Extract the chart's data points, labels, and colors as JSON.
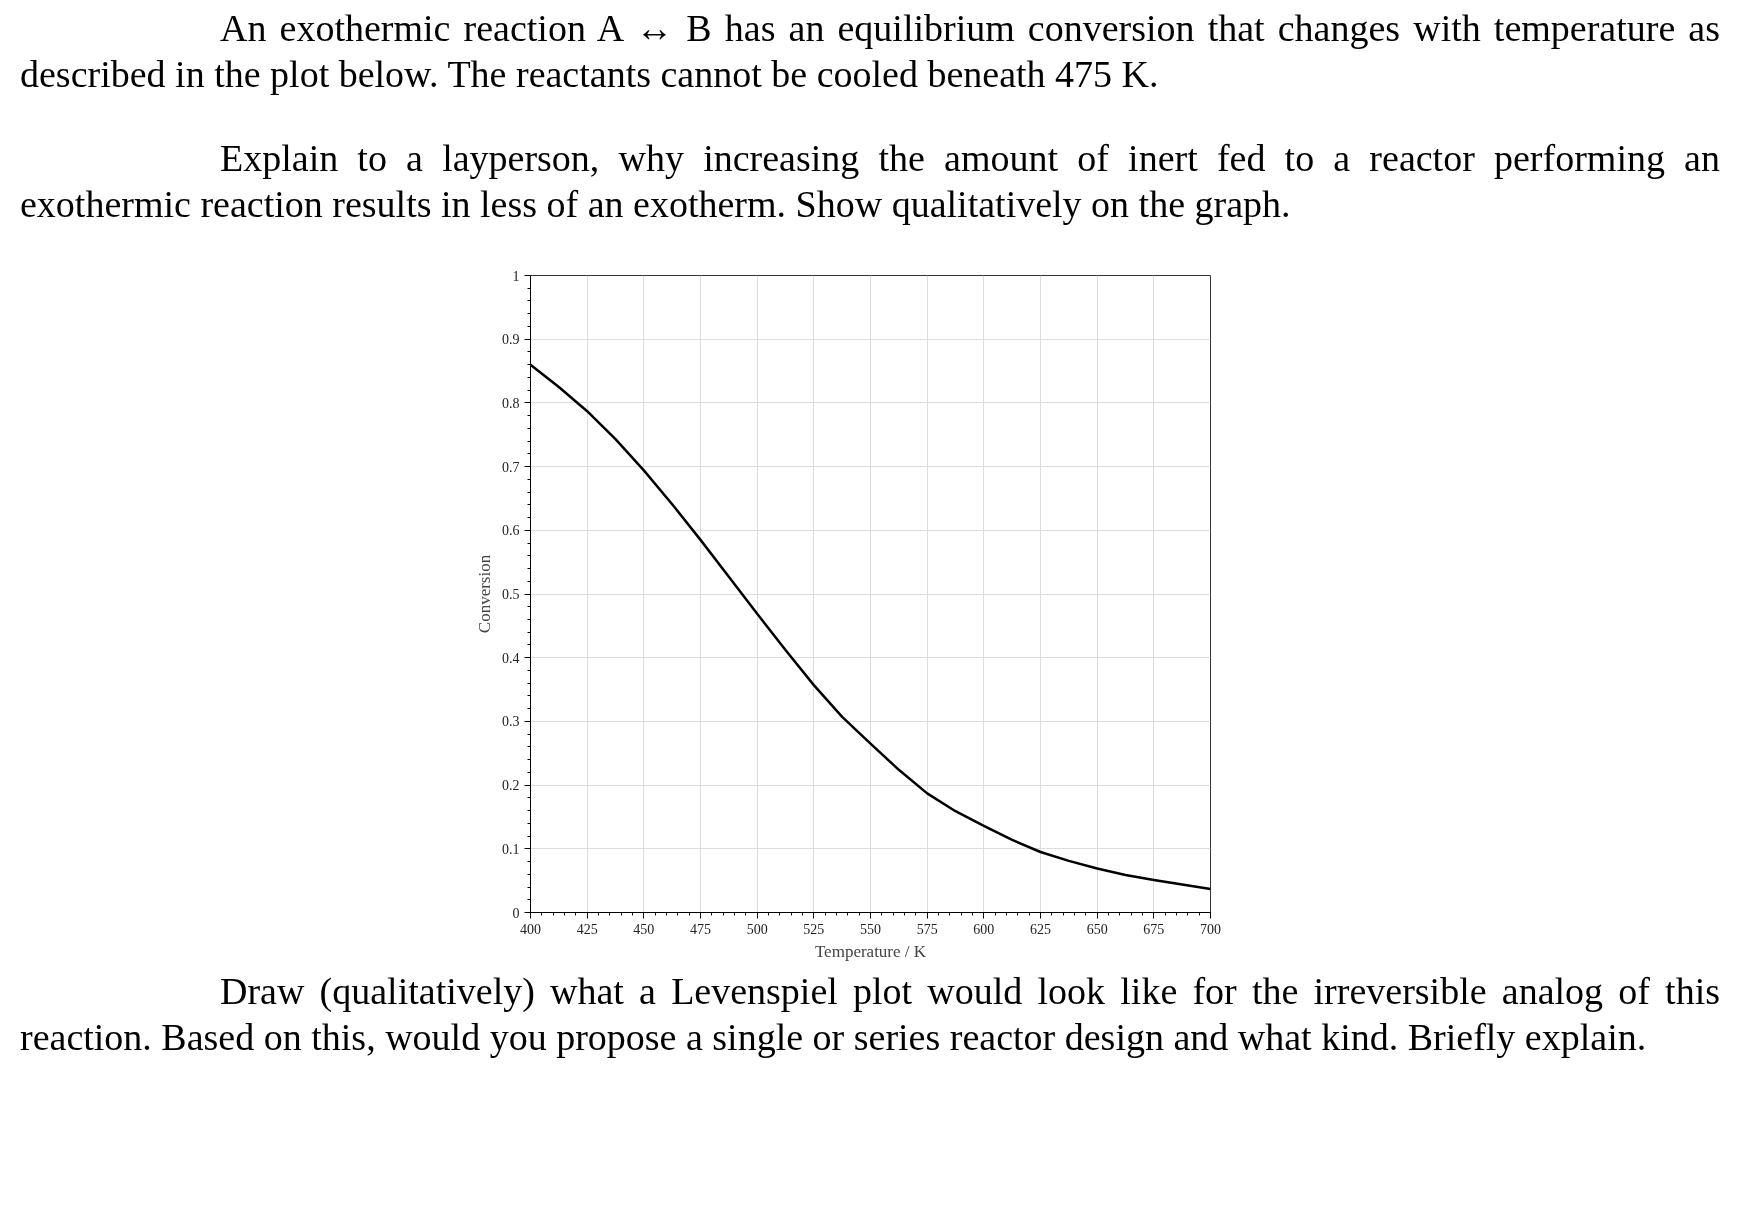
{
  "chart_data": {
    "type": "line",
    "annotations": [
      "An exothermic reaction A ↔ B has an equilibrium conversion that changes with temperature as described in the plot below. The reactants cannot be cooled beneath 475 K.",
      "Explain to a layperson, why increasing the amount of inert fed to a reactor performing an exothermic reaction results in less of an exotherm. Show qualitatively on the graph.",
      "Draw (qualitatively) what a Levenspiel plot would look like for the irreversible analog of this reaction. Based on this, would you propose a single or series reactor design and what kind. Briefly explain."
    ],
    "xlabel": "Temperature / K",
    "ylabel": "Conversion",
    "x": [
      400,
      412.5,
      425,
      437.5,
      450,
      462.5,
      475,
      487.5,
      500,
      512.5,
      525,
      537.5,
      550,
      562.5,
      575,
      587.5,
      600,
      612.5,
      625,
      637.5,
      650,
      662.5,
      675,
      687.5,
      700
    ],
    "series": [
      {
        "color": "#000000",
        "values": [
          0.86,
          0.825,
          0.787,
          0.743,
          0.694,
          0.641,
          0.585,
          0.527,
          0.469,
          0.412,
          0.357,
          0.307,
          0.265,
          0.224,
          0.187,
          0.159,
          0.136,
          0.114,
          0.095,
          0.081,
          0.069,
          0.059,
          0.051,
          0.044,
          0.037
        ]
      }
    ],
    "xlim": [
      400,
      700
    ],
    "ylim": [
      0,
      1
    ],
    "xticks": [
      400,
      425,
      450,
      475,
      500,
      525,
      550,
      575,
      600,
      625,
      650,
      675,
      700
    ],
    "yticks": [
      0,
      0.1,
      0.2,
      0.3,
      0.4,
      0.5,
      0.6,
      0.7,
      0.8,
      0.9,
      1
    ],
    "grid": true,
    "line_style": "solid"
  }
}
